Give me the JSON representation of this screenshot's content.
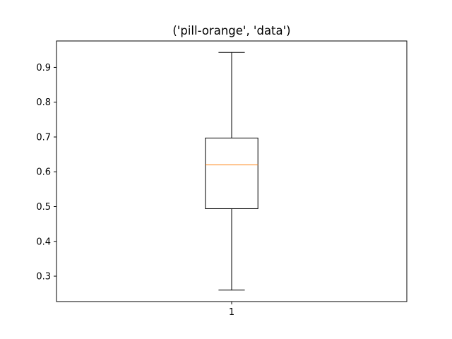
{
  "chart_data": {
    "type": "box",
    "title": "('pill-orange', 'data')",
    "xlabel": "",
    "ylabel": "",
    "categories": [
      "1"
    ],
    "boxes": [
      {
        "category": "1",
        "whisker_low": 0.26,
        "q1": 0.494,
        "median": 0.62,
        "q3": 0.697,
        "whisker_high": 0.943
      }
    ],
    "ylim": [
      0.227,
      0.976
    ],
    "yticks": [
      "0.3",
      "0.4",
      "0.5",
      "0.6",
      "0.7",
      "0.8",
      "0.9"
    ],
    "grid": false,
    "colors": {
      "box": "#000000",
      "median": "#ff7f0e",
      "axes": "#000000"
    }
  }
}
